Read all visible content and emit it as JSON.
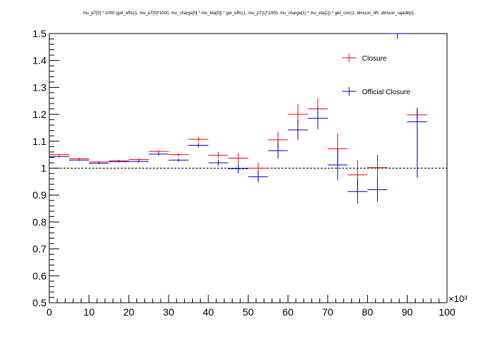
{
  "chart_data": {
    "type": "scatter",
    "title": "mu_pT[0] * 1000 (get_effic(1, mu_pT[0]*1000, mu_charge[0] * mu_eta[0]) * get_effic(1, mu_pT[1]*1000, mu_charge[1] * mu_eta[1]) * get_corr(1, dimuon_dR, dimuon_rapidity))",
    "xlabel": "",
    "ylabel": "",
    "x_exponent_label": "×10³",
    "xlim": [
      0,
      100
    ],
    "ylim": [
      0.5,
      1.5
    ],
    "x_ticks": [
      0,
      10,
      20,
      30,
      40,
      50,
      60,
      70,
      80,
      90,
      100
    ],
    "y_ticks": [
      0.5,
      0.6,
      0.7,
      0.8,
      0.9,
      1.0,
      1.1,
      1.2,
      1.3,
      1.4,
      1.5
    ],
    "x_tick_labels": [
      "0",
      "10",
      "20",
      "30",
      "40",
      "50",
      "60",
      "70",
      "80",
      "90",
      "100"
    ],
    "y_tick_labels": [
      "0.5",
      "0.6",
      "0.7",
      "0.8",
      "0.9",
      "1",
      "1.1",
      "1.2",
      "1.3",
      "1.4",
      "1.5"
    ],
    "reference_line": 1.0,
    "grid": false,
    "legend_position": "top-right",
    "series": [
      {
        "name": "Closure",
        "color": "#ff0000",
        "points": [
          {
            "x0": 0,
            "x1": 5,
            "y": 1.05,
            "ylo": 1.047,
            "yhi": 1.053
          },
          {
            "x0": 5,
            "x1": 10,
            "y": 1.035,
            "ylo": 1.032,
            "yhi": 1.038
          },
          {
            "x0": 10,
            "x1": 15,
            "y": 1.023,
            "ylo": 1.02,
            "yhi": 1.026
          },
          {
            "x0": 15,
            "x1": 20,
            "y": 1.028,
            "ylo": 1.025,
            "yhi": 1.031
          },
          {
            "x0": 20,
            "x1": 25,
            "y": 1.032,
            "ylo": 1.028,
            "yhi": 1.036
          },
          {
            "x0": 25,
            "x1": 30,
            "y": 1.062,
            "ylo": 1.057,
            "yhi": 1.067
          },
          {
            "x0": 30,
            "x1": 35,
            "y": 1.05,
            "ylo": 1.044,
            "yhi": 1.056
          },
          {
            "x0": 35,
            "x1": 40,
            "y": 1.107,
            "ylo": 1.098,
            "yhi": 1.116
          },
          {
            "x0": 40,
            "x1": 45,
            "y": 1.048,
            "ylo": 1.036,
            "yhi": 1.06
          },
          {
            "x0": 45,
            "x1": 50,
            "y": 1.037,
            "ylo": 1.018,
            "yhi": 1.056
          },
          {
            "x0": 50,
            "x1": 55,
            "y": 1.0,
            "ylo": 0.978,
            "yhi": 1.022
          },
          {
            "x0": 55,
            "x1": 60,
            "y": 1.105,
            "ylo": 1.075,
            "yhi": 1.135
          },
          {
            "x0": 60,
            "x1": 65,
            "y": 1.2,
            "ylo": 1.163,
            "yhi": 1.237
          },
          {
            "x0": 65,
            "x1": 70,
            "y": 1.22,
            "ylo": 1.18,
            "yhi": 1.26
          },
          {
            "x0": 70,
            "x1": 75,
            "y": 1.072,
            "ylo": 1.015,
            "yhi": 1.13
          },
          {
            "x0": 75,
            "x1": 80,
            "y": 0.975,
            "ylo": 0.918,
            "yhi": 1.03
          },
          {
            "x0": 80,
            "x1": 85,
            "y": 1.002,
            "ylo": 0.955,
            "yhi": 1.05
          },
          {
            "x0": 90,
            "x1": 95,
            "y": 1.198,
            "ylo": 1.18,
            "yhi": 1.215
          }
        ]
      },
      {
        "name": "Official Closure",
        "color": "#0000cc",
        "points": [
          {
            "x0": 0,
            "x1": 5,
            "y": 1.043,
            "ylo": 1.04,
            "yhi": 1.046
          },
          {
            "x0": 5,
            "x1": 10,
            "y": 1.03,
            "ylo": 1.027,
            "yhi": 1.033
          },
          {
            "x0": 10,
            "x1": 15,
            "y": 1.018,
            "ylo": 1.015,
            "yhi": 1.021
          },
          {
            "x0": 15,
            "x1": 20,
            "y": 1.024,
            "ylo": 1.021,
            "yhi": 1.027
          },
          {
            "x0": 20,
            "x1": 25,
            "y": 1.025,
            "ylo": 1.021,
            "yhi": 1.029
          },
          {
            "x0": 25,
            "x1": 30,
            "y": 1.052,
            "ylo": 1.047,
            "yhi": 1.057
          },
          {
            "x0": 30,
            "x1": 35,
            "y": 1.03,
            "ylo": 1.024,
            "yhi": 1.036
          },
          {
            "x0": 35,
            "x1": 40,
            "y": 1.085,
            "ylo": 1.076,
            "yhi": 1.094
          },
          {
            "x0": 40,
            "x1": 45,
            "y": 1.02,
            "ylo": 1.008,
            "yhi": 1.032
          },
          {
            "x0": 45,
            "x1": 50,
            "y": 0.998,
            "ylo": 0.98,
            "yhi": 1.016
          },
          {
            "x0": 50,
            "x1": 55,
            "y": 0.968,
            "ylo": 0.948,
            "yhi": 0.988
          },
          {
            "x0": 55,
            "x1": 60,
            "y": 1.065,
            "ylo": 1.035,
            "yhi": 1.095
          },
          {
            "x0": 60,
            "x1": 65,
            "y": 1.142,
            "ylo": 1.105,
            "yhi": 1.18
          },
          {
            "x0": 65,
            "x1": 70,
            "y": 1.185,
            "ylo": 1.145,
            "yhi": 1.225
          },
          {
            "x0": 70,
            "x1": 75,
            "y": 1.012,
            "ylo": 0.955,
            "yhi": 1.07
          },
          {
            "x0": 75,
            "x1": 80,
            "y": 0.913,
            "ylo": 0.868,
            "yhi": 0.96
          },
          {
            "x0": 80,
            "x1": 85,
            "y": 0.92,
            "ylo": 0.875,
            "yhi": 0.965
          },
          {
            "x0": 85,
            "x1": 90,
            "y": 1.5,
            "ylo": 1.48,
            "yhi": 1.5
          },
          {
            "x0": 90,
            "x1": 95,
            "y": 1.172,
            "ylo": 0.965,
            "yhi": 1.225
          }
        ]
      }
    ]
  }
}
